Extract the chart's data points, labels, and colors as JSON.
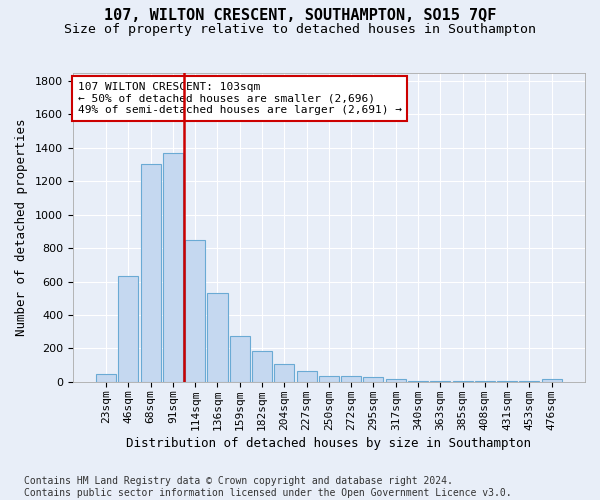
{
  "title": "107, WILTON CRESCENT, SOUTHAMPTON, SO15 7QF",
  "subtitle": "Size of property relative to detached houses in Southampton",
  "xlabel": "Distribution of detached houses by size in Southampton",
  "ylabel": "Number of detached properties",
  "bar_labels": [
    "23sqm",
    "46sqm",
    "68sqm",
    "91sqm",
    "114sqm",
    "136sqm",
    "159sqm",
    "182sqm",
    "204sqm",
    "227sqm",
    "250sqm",
    "272sqm",
    "295sqm",
    "317sqm",
    "340sqm",
    "363sqm",
    "385sqm",
    "408sqm",
    "431sqm",
    "453sqm",
    "476sqm"
  ],
  "bar_values": [
    50,
    635,
    1305,
    1370,
    850,
    530,
    275,
    185,
    105,
    65,
    37,
    35,
    28,
    15,
    5,
    5,
    5,
    5,
    5,
    5,
    15
  ],
  "bar_color": "#c5d8f0",
  "bar_edge_color": "#6aaad4",
  "background_color": "#e8eef8",
  "grid_color": "#ffffff",
  "vline_color": "#cc0000",
  "annotation_text": "107 WILTON CRESCENT: 103sqm\n← 50% of detached houses are smaller (2,696)\n49% of semi-detached houses are larger (2,691) →",
  "annotation_box_color": "white",
  "annotation_box_edge": "#cc0000",
  "ylim": [
    0,
    1850
  ],
  "yticks": [
    0,
    200,
    400,
    600,
    800,
    1000,
    1200,
    1400,
    1600,
    1800
  ],
  "footer": "Contains HM Land Registry data © Crown copyright and database right 2024.\nContains public sector information licensed under the Open Government Licence v3.0.",
  "title_fontsize": 11,
  "subtitle_fontsize": 9.5,
  "xlabel_fontsize": 9,
  "ylabel_fontsize": 9,
  "tick_fontsize": 8,
  "footer_fontsize": 7,
  "vline_bar_index": 3.5
}
